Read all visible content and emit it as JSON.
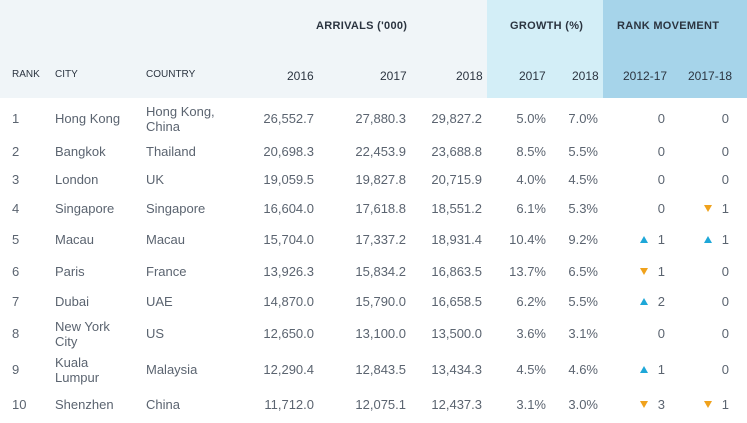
{
  "header": {
    "groups": {
      "arrivals": "ARRIVALS ('000)",
      "growth": "GROWTH (%)",
      "rank_movement": "RANK MOVEMENT"
    },
    "columns": {
      "rank": "RANK",
      "city": "CITY",
      "country": "COUNTRY",
      "arr_2016": "2016",
      "arr_2017": "2017",
      "arr_2018": "2018",
      "gr_2017": "2017",
      "gr_2018": "2018",
      "rm_1217": "2012-17",
      "rm_1718": "2017-18"
    }
  },
  "colors": {
    "up": "#1ea7d8",
    "down": "#f0a21c"
  },
  "rows": [
    {
      "rank": "1",
      "city": "Hong Kong",
      "country": "Hong Kong,\nChina",
      "a16": "26,552.7",
      "a17": "27,880.3",
      "a18": "29,827.2",
      "g17": "5.0%",
      "g18": "7.0%",
      "m1": "0",
      "d1": "",
      "m2": "0",
      "d2": ""
    },
    {
      "rank": "2",
      "city": "Bangkok",
      "country": "Thailand",
      "a16": "20,698.3",
      "a17": "22,453.9",
      "a18": "23,688.8",
      "g17": "8.5%",
      "g18": "5.5%",
      "m1": "0",
      "d1": "",
      "m2": "0",
      "d2": ""
    },
    {
      "rank": "3",
      "city": "London",
      "country": "UK",
      "a16": "19,059.5",
      "a17": "19,827.8",
      "a18": "20,715.9",
      "g17": "4.0%",
      "g18": "4.5%",
      "m1": "0",
      "d1": "",
      "m2": "0",
      "d2": ""
    },
    {
      "rank": "4",
      "city": "Singapore",
      "country": "Singapore",
      "a16": "16,604.0",
      "a17": "17,618.8",
      "a18": "18,551.2",
      "g17": "6.1%",
      "g18": "5.3%",
      "m1": "0",
      "d1": "",
      "m2": "1",
      "d2": "down"
    },
    {
      "rank": "5",
      "city": "Macau",
      "country": "Macau",
      "a16": "15,704.0",
      "a17": "17,337.2",
      "a18": "18,931.4",
      "g17": "10.4%",
      "g18": "9.2%",
      "m1": "1",
      "d1": "up",
      "m2": "1",
      "d2": "up"
    },
    {
      "rank": "6",
      "city": "Paris",
      "country": "France",
      "a16": "13,926.3",
      "a17": "15,834.2",
      "a18": "16,863.5",
      "g17": "13.7%",
      "g18": "6.5%",
      "m1": "1",
      "d1": "down",
      "m2": "0",
      "d2": ""
    },
    {
      "rank": "7",
      "city": "Dubai",
      "country": "UAE",
      "a16": "14,870.0",
      "a17": "15,790.0",
      "a18": "16,658.5",
      "g17": "6.2%",
      "g18": "5.5%",
      "m1": "2",
      "d1": "up",
      "m2": "0",
      "d2": ""
    },
    {
      "rank": "8",
      "city": "New York\nCity",
      "country": "US",
      "a16": "12,650.0",
      "a17": "13,100.0",
      "a18": "13,500.0",
      "g17": "3.6%",
      "g18": "3.1%",
      "m1": "0",
      "d1": "",
      "m2": "0",
      "d2": ""
    },
    {
      "rank": "9",
      "city": "Kuala\nLumpur",
      "country": "Malaysia",
      "a16": "12,290.4",
      "a17": "12,843.5",
      "a18": "13,434.3",
      "g17": "4.5%",
      "g18": "4.6%",
      "m1": "1",
      "d1": "up",
      "m2": "0",
      "d2": ""
    },
    {
      "rank": "10",
      "city": "Shenzhen",
      "country": "China",
      "a16": "11,712.0",
      "a17": "12,075.1",
      "a18": "12,437.3",
      "g17": "3.1%",
      "g18": "3.0%",
      "m1": "3",
      "d1": "down",
      "m2": "1",
      "d2": "down"
    }
  ]
}
